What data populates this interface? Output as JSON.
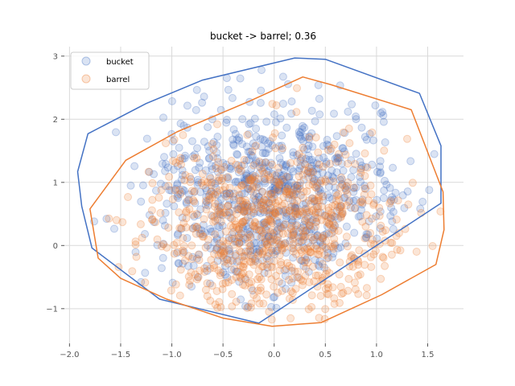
{
  "chart_data": {
    "type": "scatter",
    "title": "bucket -> barrel; 0.36",
    "xlabel": "",
    "ylabel": "",
    "xlim": [
      -2.05,
      1.85
    ],
    "ylim": [
      -1.55,
      3.15
    ],
    "x_ticks": [
      -2.0,
      -1.5,
      -1.0,
      -0.5,
      0.0,
      0.5,
      1.0,
      1.5
    ],
    "x_tick_labels": [
      "−2.0",
      "−1.5",
      "−1.0",
      "−0.5",
      "0.0",
      "0.5",
      "1.0",
      "1.5"
    ],
    "y_ticks": [
      -1,
      0,
      1,
      2,
      3
    ],
    "y_tick_labels": [
      "−1",
      "0",
      "1",
      "2",
      "3"
    ],
    "grid": true,
    "legend_position": "top-left",
    "series": [
      {
        "name": "bucket",
        "color": "#4472c4",
        "n_points": 800,
        "center": [
          0.0,
          0.75
        ],
        "spread": [
          0.62,
          0.72
        ],
        "seed": 7,
        "hull": [
          [
            -1.92,
            1.17
          ],
          [
            -1.82,
            1.77
          ],
          [
            -1.25,
            2.25
          ],
          [
            -0.7,
            2.62
          ],
          [
            0.2,
            2.97
          ],
          [
            0.5,
            2.95
          ],
          [
            1.42,
            2.41
          ],
          [
            1.63,
            1.58
          ],
          [
            1.63,
            0.67
          ],
          [
            1.0,
            0.0
          ],
          [
            0.42,
            -0.62
          ],
          [
            -0.15,
            -1.23
          ],
          [
            -1.12,
            -0.85
          ],
          [
            -1.78,
            -0.04
          ],
          [
            -1.88,
            0.62
          ]
        ]
      },
      {
        "name": "barrel",
        "color": "#ed7d31",
        "n_points": 800,
        "center": [
          0.0,
          0.3
        ],
        "spread": [
          0.62,
          0.72
        ],
        "seed": 19,
        "hull": [
          [
            -1.8,
            0.58
          ],
          [
            -1.45,
            1.35
          ],
          [
            -0.95,
            1.8
          ],
          [
            -0.25,
            2.28
          ],
          [
            0.28,
            2.67
          ],
          [
            0.55,
            2.55
          ],
          [
            1.34,
            2.15
          ],
          [
            1.65,
            0.85
          ],
          [
            1.66,
            0.25
          ],
          [
            1.58,
            -0.3
          ],
          [
            1.05,
            -0.78
          ],
          [
            0.46,
            -1.22
          ],
          [
            -0.02,
            -1.28
          ],
          [
            -0.5,
            -1.15
          ],
          [
            -1.05,
            -0.85
          ],
          [
            -1.5,
            -0.52
          ],
          [
            -1.72,
            -0.2
          ]
        ]
      }
    ]
  }
}
